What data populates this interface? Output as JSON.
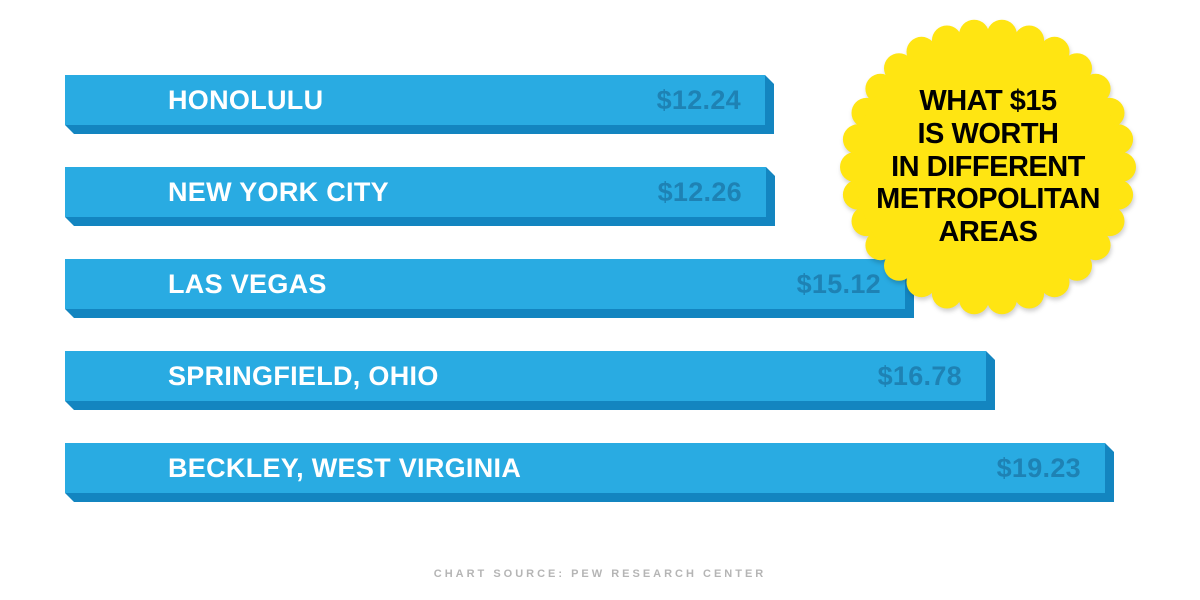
{
  "chart_data": {
    "type": "bar",
    "orientation": "horizontal",
    "title": "WHAT $15 IS WORTH IN DIFFERENT METROPOLITAN AREAS",
    "categories": [
      "HONOLULU",
      "NEW YORK CITY",
      "LAS VEGAS",
      "SPRINGFIELD, OHIO",
      "BECKLEY, WEST VIRGINIA"
    ],
    "values": [
      12.24,
      12.26,
      15.12,
      16.78,
      19.23
    ],
    "value_labels": [
      "$12.24",
      "$12.26",
      "$15.12",
      "$16.78",
      "$19.23"
    ],
    "xlabel": "",
    "ylabel": "",
    "legend": "none",
    "grid": "off",
    "source": "CHART SOURCE: PEW RESEARCH CENTER",
    "colors": {
      "bar_face": "#29abe2",
      "bar_shade": "#1385c0",
      "label_text": "#ffffff",
      "value_text": "#1e82b4",
      "badge_fill": "#ffe512",
      "badge_text": "#000000",
      "source_text": "#b5b5b5"
    }
  },
  "badge": {
    "lines": [
      "WHAT $15",
      "IS WORTH",
      "IN DIFFERENT",
      "METROPOLITAN",
      "AREAS"
    ]
  },
  "footer": {
    "source": "CHART SOURCE: PEW RESEARCH CENTER"
  }
}
